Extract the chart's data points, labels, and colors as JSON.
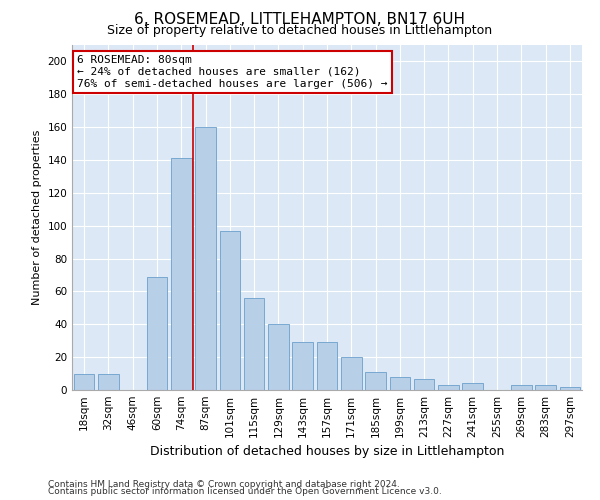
{
  "title": "6, ROSEMEAD, LITTLEHAMPTON, BN17 6UH",
  "subtitle": "Size of property relative to detached houses in Littlehampton",
  "xlabel": "Distribution of detached houses by size in Littlehampton",
  "ylabel": "Number of detached properties",
  "footnote1": "Contains HM Land Registry data © Crown copyright and database right 2024.",
  "footnote2": "Contains public sector information licensed under the Open Government Licence v3.0.",
  "categories": [
    "18sqm",
    "32sqm",
    "46sqm",
    "60sqm",
    "74sqm",
    "87sqm",
    "101sqm",
    "115sqm",
    "129sqm",
    "143sqm",
    "157sqm",
    "171sqm",
    "185sqm",
    "199sqm",
    "213sqm",
    "227sqm",
    "241sqm",
    "255sqm",
    "269sqm",
    "283sqm",
    "297sqm"
  ],
  "values": [
    10,
    10,
    0,
    69,
    141,
    160,
    97,
    56,
    40,
    29,
    29,
    20,
    11,
    8,
    7,
    3,
    4,
    0,
    3,
    3,
    2
  ],
  "bar_color": "#b8cfe8",
  "bar_edge_color": "#6a9fcc",
  "vline_x": 4.5,
  "vline_color": "#cc0000",
  "annotation_text": "6 ROSEMEAD: 80sqm\n← 24% of detached houses are smaller (162)\n76% of semi-detached houses are larger (506) →",
  "annotation_box_color": "#ffffff",
  "annotation_box_edge": "#cc0000",
  "ylim": [
    0,
    210
  ],
  "yticks": [
    0,
    20,
    40,
    60,
    80,
    100,
    120,
    140,
    160,
    180,
    200
  ],
  "background_color": "#dce8f5",
  "grid_color": "#ffffff",
  "fig_background": "#ffffff",
  "title_fontsize": 11,
  "subtitle_fontsize": 9,
  "xlabel_fontsize": 9,
  "ylabel_fontsize": 8,
  "tick_fontsize": 7.5,
  "annotation_fontsize": 8,
  "footnote_fontsize": 6.5
}
